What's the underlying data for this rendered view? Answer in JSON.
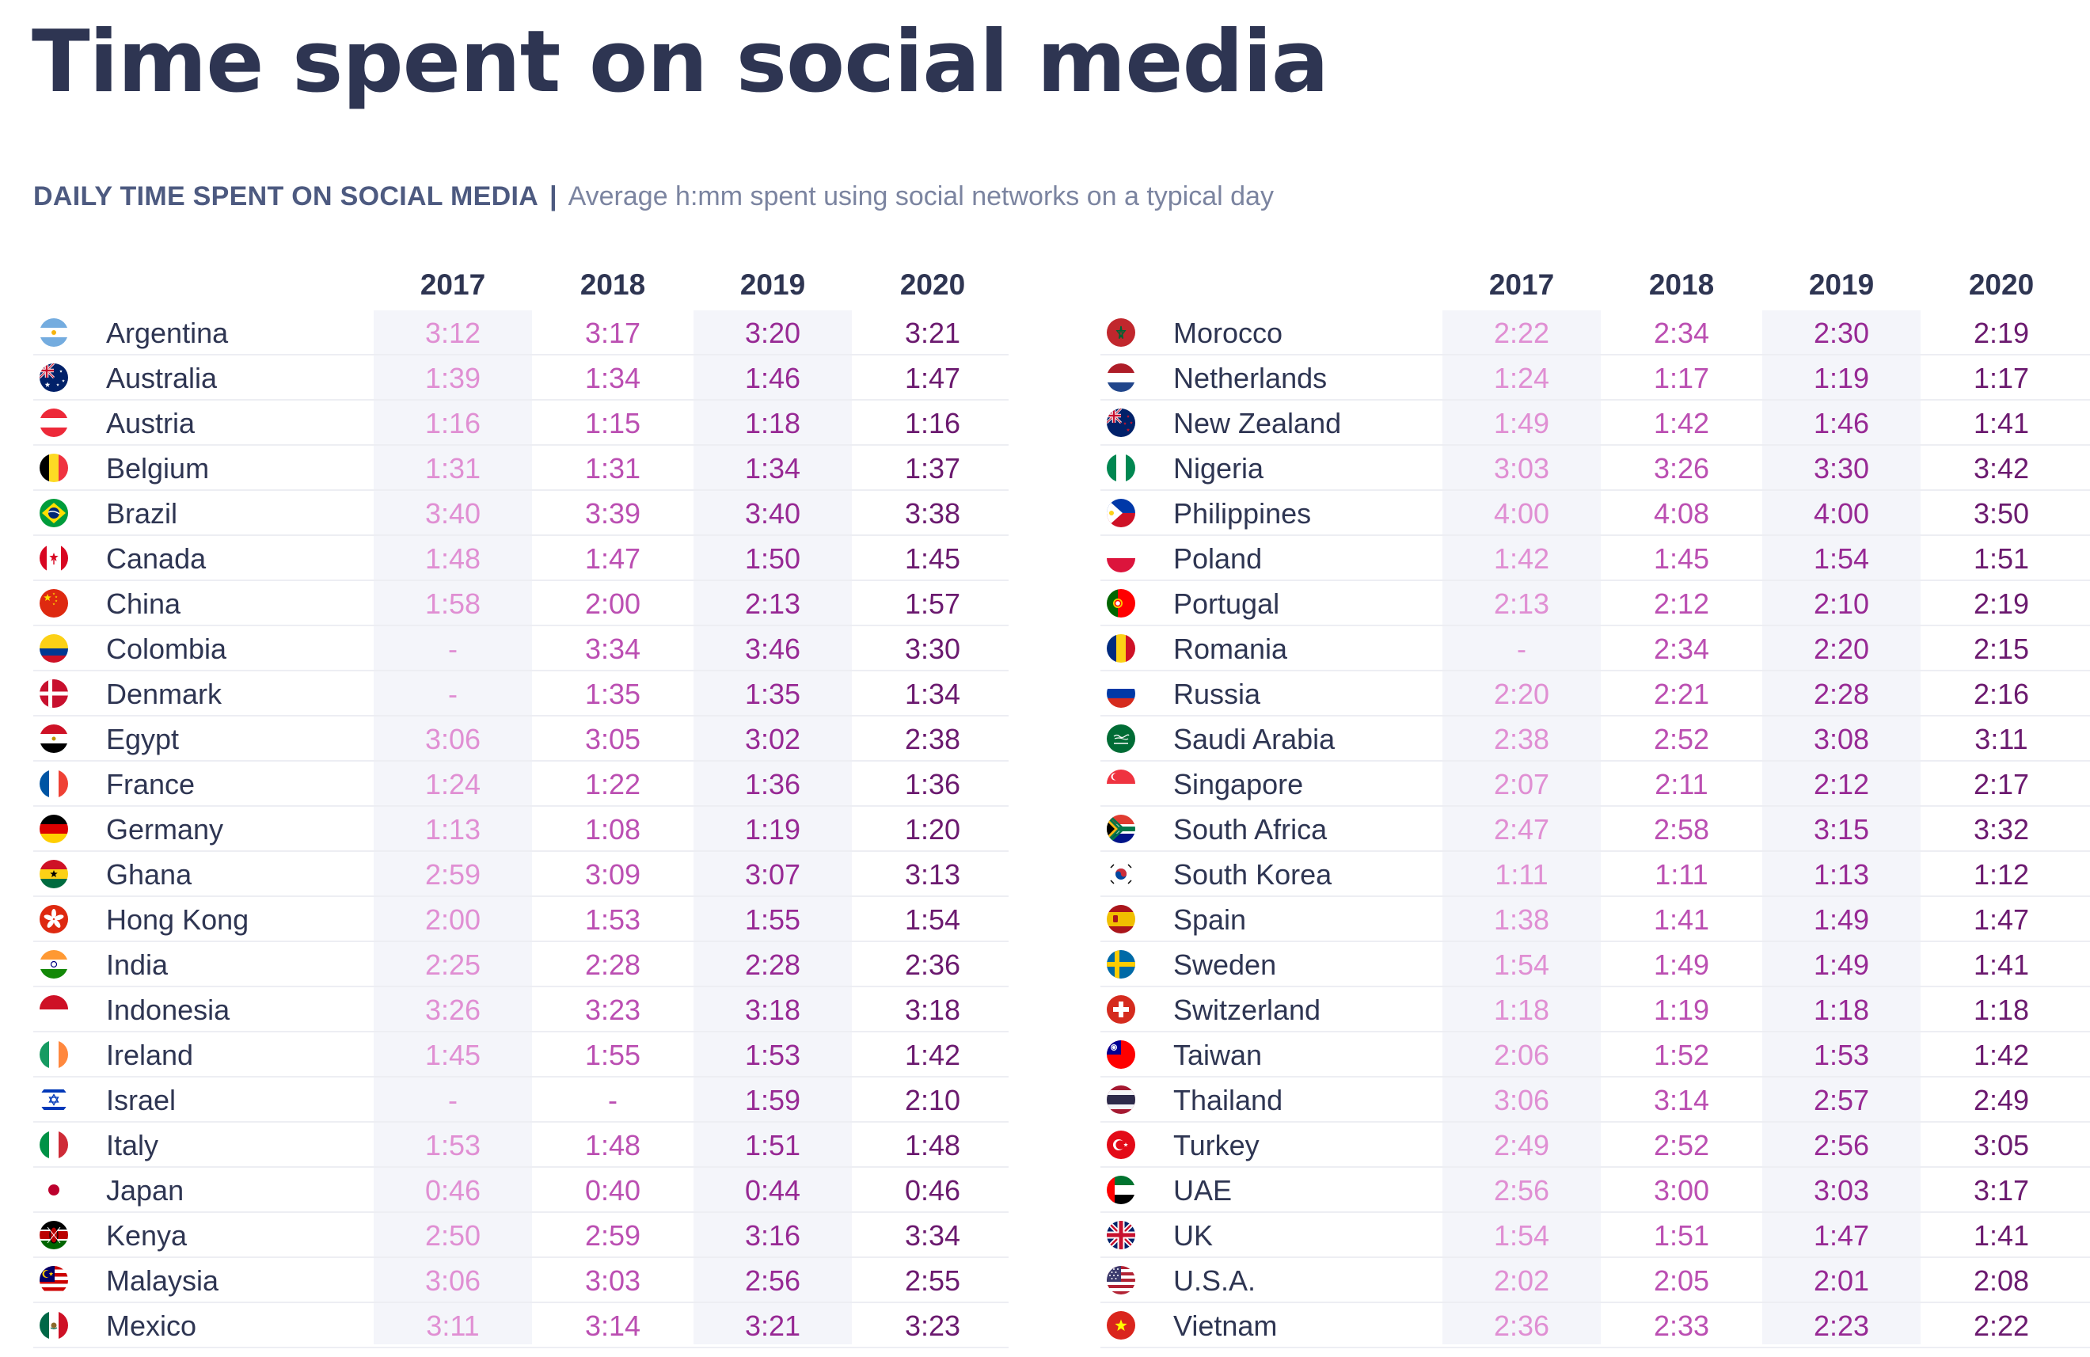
{
  "page_title": "Time spent on social media",
  "subtitle": {
    "label": "DAILY TIME SPENT ON SOCIAL MEDIA",
    "separator": "|",
    "description": "Average h:mm spent using social networks on a typical day"
  },
  "colors": {
    "title": "#2e3552",
    "y2017": "#e08fd3",
    "y2018": "#bb4fb2",
    "y2019": "#972994",
    "y2020": "#6b1a6f",
    "stripe": "#f4f5fa"
  },
  "chart_data": {
    "type": "table",
    "title": "Time spent on social media",
    "subtitle": "DAILY TIME SPENT ON SOCIAL MEDIA | Average h:mm spent using social networks on a typical day",
    "columns": [
      "2017",
      "2018",
      "2019",
      "2020"
    ],
    "rows": [
      {
        "country": "Argentina",
        "flag": "argentina-flag-icon",
        "values": [
          "3:12",
          "3:17",
          "3:20",
          "3:21"
        ]
      },
      {
        "country": "Australia",
        "flag": "australia-flag-icon",
        "values": [
          "1:39",
          "1:34",
          "1:46",
          "1:47"
        ]
      },
      {
        "country": "Austria",
        "flag": "austria-flag-icon",
        "values": [
          "1:16",
          "1:15",
          "1:18",
          "1:16"
        ]
      },
      {
        "country": "Belgium",
        "flag": "belgium-flag-icon",
        "values": [
          "1:31",
          "1:31",
          "1:34",
          "1:37"
        ]
      },
      {
        "country": "Brazil",
        "flag": "brazil-flag-icon",
        "values": [
          "3:40",
          "3:39",
          "3:40",
          "3:38"
        ]
      },
      {
        "country": "Canada",
        "flag": "canada-flag-icon",
        "values": [
          "1:48",
          "1:47",
          "1:50",
          "1:45"
        ]
      },
      {
        "country": "China",
        "flag": "china-flag-icon",
        "values": [
          "1:58",
          "2:00",
          "2:13",
          "1:57"
        ]
      },
      {
        "country": "Colombia",
        "flag": "colombia-flag-icon",
        "values": [
          "-",
          "3:34",
          "3:46",
          "3:30"
        ]
      },
      {
        "country": "Denmark",
        "flag": "denmark-flag-icon",
        "values": [
          "-",
          "1:35",
          "1:35",
          "1:34"
        ]
      },
      {
        "country": "Egypt",
        "flag": "egypt-flag-icon",
        "values": [
          "3:06",
          "3:05",
          "3:02",
          "2:38"
        ]
      },
      {
        "country": "France",
        "flag": "france-flag-icon",
        "values": [
          "1:24",
          "1:22",
          "1:36",
          "1:36"
        ]
      },
      {
        "country": "Germany",
        "flag": "germany-flag-icon",
        "values": [
          "1:13",
          "1:08",
          "1:19",
          "1:20"
        ]
      },
      {
        "country": "Ghana",
        "flag": "ghana-flag-icon",
        "values": [
          "2:59",
          "3:09",
          "3:07",
          "3:13"
        ]
      },
      {
        "country": "Hong Kong",
        "flag": "hong-kong-flag-icon",
        "values": [
          "2:00",
          "1:53",
          "1:55",
          "1:54"
        ]
      },
      {
        "country": "India",
        "flag": "india-flag-icon",
        "values": [
          "2:25",
          "2:28",
          "2:28",
          "2:36"
        ]
      },
      {
        "country": "Indonesia",
        "flag": "indonesia-flag-icon",
        "values": [
          "3:26",
          "3:23",
          "3:18",
          "3:18"
        ]
      },
      {
        "country": "Ireland",
        "flag": "ireland-flag-icon",
        "values": [
          "1:45",
          "1:55",
          "1:53",
          "1:42"
        ]
      },
      {
        "country": "Israel",
        "flag": "israel-flag-icon",
        "values": [
          "-",
          "-",
          "1:59",
          "2:10"
        ]
      },
      {
        "country": "Italy",
        "flag": "italy-flag-icon",
        "values": [
          "1:53",
          "1:48",
          "1:51",
          "1:48"
        ]
      },
      {
        "country": "Japan",
        "flag": "japan-flag-icon",
        "values": [
          "0:46",
          "0:40",
          "0:44",
          "0:46"
        ]
      },
      {
        "country": "Kenya",
        "flag": "kenya-flag-icon",
        "values": [
          "2:50",
          "2:59",
          "3:16",
          "3:34"
        ]
      },
      {
        "country": "Malaysia",
        "flag": "malaysia-flag-icon",
        "values": [
          "3:06",
          "3:03",
          "2:56",
          "2:55"
        ]
      },
      {
        "country": "Mexico",
        "flag": "mexico-flag-icon",
        "values": [
          "3:11",
          "3:14",
          "3:21",
          "3:23"
        ]
      },
      {
        "country": "Morocco",
        "flag": "morocco-flag-icon",
        "values": [
          "2:22",
          "2:34",
          "2:30",
          "2:19"
        ]
      },
      {
        "country": "Netherlands",
        "flag": "netherlands-flag-icon",
        "values": [
          "1:24",
          "1:17",
          "1:19",
          "1:17"
        ]
      },
      {
        "country": "New Zealand",
        "flag": "new-zealand-flag-icon",
        "values": [
          "1:49",
          "1:42",
          "1:46",
          "1:41"
        ]
      },
      {
        "country": "Nigeria",
        "flag": "nigeria-flag-icon",
        "values": [
          "3:03",
          "3:26",
          "3:30",
          "3:42"
        ]
      },
      {
        "country": "Philippines",
        "flag": "philippines-flag-icon",
        "values": [
          "4:00",
          "4:08",
          "4:00",
          "3:50"
        ]
      },
      {
        "country": "Poland",
        "flag": "poland-flag-icon",
        "values": [
          "1:42",
          "1:45",
          "1:54",
          "1:51"
        ]
      },
      {
        "country": "Portugal",
        "flag": "portugal-flag-icon",
        "values": [
          "2:13",
          "2:12",
          "2:10",
          "2:19"
        ]
      },
      {
        "country": "Romania",
        "flag": "romania-flag-icon",
        "values": [
          "-",
          "2:34",
          "2:20",
          "2:15"
        ]
      },
      {
        "country": "Russia",
        "flag": "russia-flag-icon",
        "values": [
          "2:20",
          "2:21",
          "2:28",
          "2:16"
        ]
      },
      {
        "country": "Saudi Arabia",
        "flag": "saudi-arabia-flag-icon",
        "values": [
          "2:38",
          "2:52",
          "3:08",
          "3:11"
        ]
      },
      {
        "country": "Singapore",
        "flag": "singapore-flag-icon",
        "values": [
          "2:07",
          "2:11",
          "2:12",
          "2:17"
        ]
      },
      {
        "country": "South Africa",
        "flag": "south-africa-flag-icon",
        "values": [
          "2:47",
          "2:58",
          "3:15",
          "3:32"
        ]
      },
      {
        "country": "South Korea",
        "flag": "south-korea-flag-icon",
        "values": [
          "1:11",
          "1:11",
          "1:13",
          "1:12"
        ]
      },
      {
        "country": "Spain",
        "flag": "spain-flag-icon",
        "values": [
          "1:38",
          "1:41",
          "1:49",
          "1:47"
        ]
      },
      {
        "country": "Sweden",
        "flag": "sweden-flag-icon",
        "values": [
          "1:54",
          "1:49",
          "1:49",
          "1:41"
        ]
      },
      {
        "country": "Switzerland",
        "flag": "switzerland-flag-icon",
        "values": [
          "1:18",
          "1:19",
          "1:18",
          "1:18"
        ]
      },
      {
        "country": "Taiwan",
        "flag": "taiwan-flag-icon",
        "values": [
          "2:06",
          "1:52",
          "1:53",
          "1:42"
        ]
      },
      {
        "country": "Thailand",
        "flag": "thailand-flag-icon",
        "values": [
          "3:06",
          "3:14",
          "2:57",
          "2:49"
        ]
      },
      {
        "country": "Turkey",
        "flag": "turkey-flag-icon",
        "values": [
          "2:49",
          "2:52",
          "2:56",
          "3:05"
        ]
      },
      {
        "country": "UAE",
        "flag": "uae-flag-icon",
        "values": [
          "2:56",
          "3:00",
          "3:03",
          "3:17"
        ]
      },
      {
        "country": "UK",
        "flag": "uk-flag-icon",
        "values": [
          "1:54",
          "1:51",
          "1:47",
          "1:41"
        ]
      },
      {
        "country": "U.S.A.",
        "flag": "usa-flag-icon",
        "values": [
          "2:02",
          "2:05",
          "2:01",
          "2:08"
        ]
      },
      {
        "country": "Vietnam",
        "flag": "vietnam-flag-icon",
        "values": [
          "2:36",
          "2:33",
          "2:23",
          "2:22"
        ]
      }
    ]
  }
}
